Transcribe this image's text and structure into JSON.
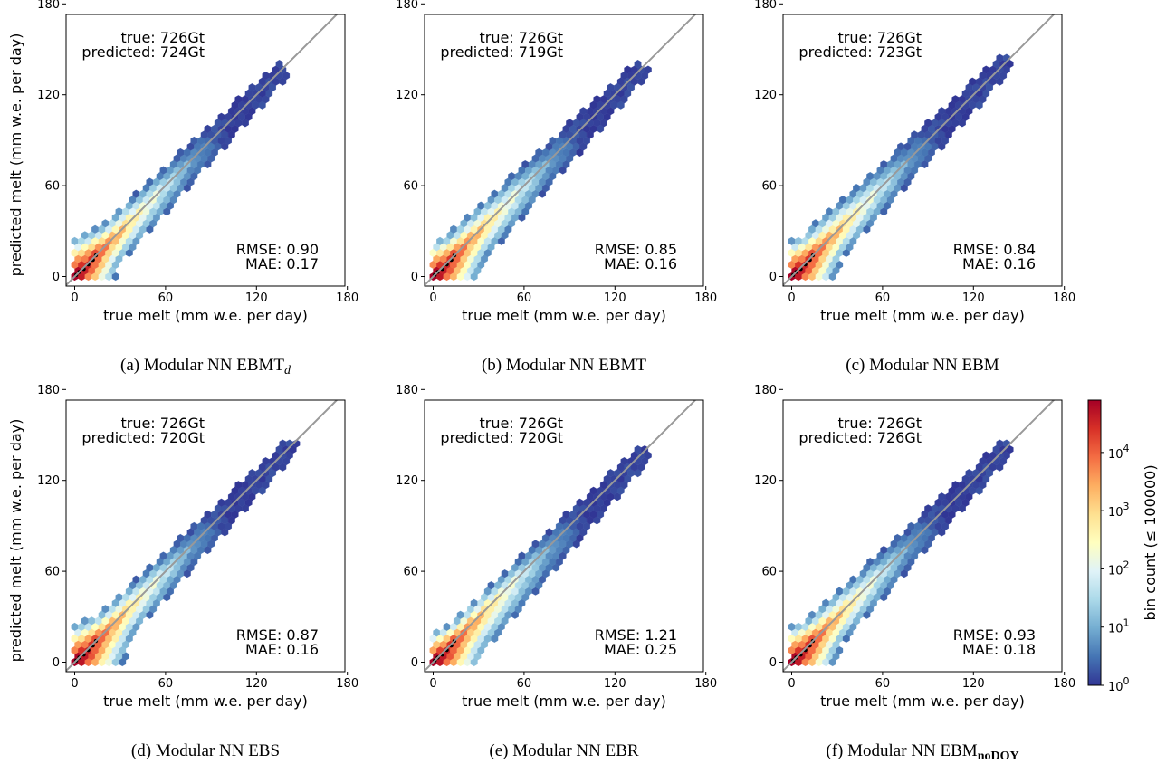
{
  "figure": {
    "colorbar": {
      "label": "bin count (≤ 100000)",
      "ticks": [
        {
          "exp": 0,
          "base": "10",
          "power": "0"
        },
        {
          "exp": 1,
          "base": "10",
          "power": "1"
        },
        {
          "exp": 2,
          "base": "10",
          "power": "2"
        },
        {
          "exp": 3,
          "base": "10",
          "power": "3"
        },
        {
          "exp": 4,
          "base": "10",
          "power": "4"
        }
      ],
      "scale": "log",
      "colors": [
        "#313695",
        "#4575b4",
        "#74add1",
        "#abd9e9",
        "#e0f3f8",
        "#ffffbf",
        "#fee090",
        "#fdae61",
        "#f46d43",
        "#d73027",
        "#a50026"
      ]
    }
  },
  "chart_data": [
    {
      "type": "hexbin",
      "caption": {
        "prefix": "(a) Modular NN EBMT",
        "sub": "d",
        "sup": ""
      },
      "xlabel": "true melt (mm w.e. per day)",
      "ylabel": "predicted melt (mm w.e. per day)",
      "xlim": [
        0,
        180
      ],
      "ylim": [
        0,
        180
      ],
      "xticks": [
        0,
        60,
        120,
        180
      ],
      "yticks": [
        0,
        60,
        120,
        180
      ],
      "identity_line": true,
      "annotations": {
        "true_total": "true: 726Gt",
        "pred_total": "predicted: 724Gt",
        "rmse": "RMSE: 0.90",
        "mae": "MAE: 0.17"
      },
      "cloud": {
        "x_max": 138,
        "y_max": 140,
        "upper_spread": 14,
        "lower_spread": 20,
        "y_intercept_max": 35,
        "x_intercept_max": 38
      }
    },
    {
      "type": "hexbin",
      "caption": {
        "prefix": "(b) Modular NN EBMT",
        "sub": "",
        "sup": ""
      },
      "xlabel": "true melt (mm w.e. per day)",
      "ylabel": "",
      "xlim": [
        0,
        180
      ],
      "ylim": [
        0,
        180
      ],
      "xticks": [
        0,
        60,
        120,
        180
      ],
      "yticks": [
        0,
        60,
        120,
        180
      ],
      "identity_line": true,
      "annotations": {
        "true_total": "true: 726Gt",
        "pred_total": "predicted: 719Gt",
        "rmse": "RMSE: 0.85",
        "mae": "MAE: 0.16"
      },
      "cloud": {
        "x_max": 140,
        "y_max": 142,
        "upper_spread": 16,
        "lower_spread": 22,
        "y_intercept_max": 32,
        "x_intercept_max": 42
      }
    },
    {
      "type": "hexbin",
      "caption": {
        "prefix": "(c) Modular NN EBM",
        "sub": "",
        "sup": ""
      },
      "xlabel": "true melt (mm w.e. per day)",
      "ylabel": "",
      "xlim": [
        0,
        180
      ],
      "ylim": [
        0,
        180
      ],
      "xticks": [
        0,
        60,
        120,
        180
      ],
      "yticks": [
        0,
        60,
        120,
        180
      ],
      "identity_line": true,
      "annotations": {
        "true_total": "true: 726Gt",
        "pred_total": "predicted: 723Gt",
        "rmse": "RMSE: 0.84",
        "mae": "MAE: 0.16"
      },
      "cloud": {
        "x_max": 144,
        "y_max": 146,
        "upper_spread": 18,
        "lower_spread": 20,
        "y_intercept_max": 33,
        "x_intercept_max": 40
      }
    },
    {
      "type": "hexbin",
      "caption": {
        "prefix": "(d) Modular NN EBS",
        "sub": "",
        "sup": ""
      },
      "xlabel": "true melt (mm w.e. per day)",
      "ylabel": "predicted melt (mm w.e. per day)",
      "xlim": [
        0,
        180
      ],
      "ylim": [
        0,
        180
      ],
      "xticks": [
        0,
        60,
        120,
        180
      ],
      "yticks": [
        0,
        60,
        120,
        180
      ],
      "identity_line": true,
      "annotations": {
        "true_total": "true: 726Gt",
        "pred_total": "predicted: 720Gt",
        "rmse": "RMSE: 0.87",
        "mae": "MAE: 0.16"
      },
      "cloud": {
        "x_max": 146,
        "y_max": 148,
        "upper_spread": 14,
        "lower_spread": 20,
        "y_intercept_max": 34,
        "x_intercept_max": 45
      }
    },
    {
      "type": "hexbin",
      "caption": {
        "prefix": "(e) Modular NN EBR",
        "sub": "",
        "sup": ""
      },
      "xlabel": "true melt (mm w.e. per day)",
      "ylabel": "",
      "xlim": [
        0,
        180
      ],
      "ylim": [
        0,
        180
      ],
      "xticks": [
        0,
        60,
        120,
        180
      ],
      "yticks": [
        0,
        60,
        120,
        180
      ],
      "identity_line": true,
      "annotations": {
        "true_total": "true: 726Gt",
        "pred_total": "predicted: 720Gt",
        "rmse": "RMSE: 1.21",
        "mae": "MAE: 0.25"
      },
      "cloud": {
        "x_max": 143,
        "y_max": 142,
        "upper_spread": 12,
        "lower_spread": 26,
        "y_intercept_max": 28,
        "x_intercept_max": 44
      }
    },
    {
      "type": "hexbin",
      "caption": {
        "prefix": "(f) Modular NN EBM",
        "sub": "",
        "sup": "noDOY"
      },
      "xlabel": "true melt (mm w.e. per day)",
      "ylabel": "",
      "xlim": [
        0,
        180
      ],
      "ylim": [
        0,
        180
      ],
      "xticks": [
        0,
        60,
        120,
        180
      ],
      "yticks": [
        0,
        60,
        120,
        180
      ],
      "identity_line": true,
      "annotations": {
        "true_total": "true: 726Gt",
        "pred_total": "predicted: 726Gt",
        "rmse": "RMSE: 0.93",
        "mae": "MAE: 0.18"
      },
      "cloud": {
        "x_max": 146,
        "y_max": 144,
        "upper_spread": 16,
        "lower_spread": 20,
        "y_intercept_max": 33,
        "x_intercept_max": 40
      }
    }
  ]
}
